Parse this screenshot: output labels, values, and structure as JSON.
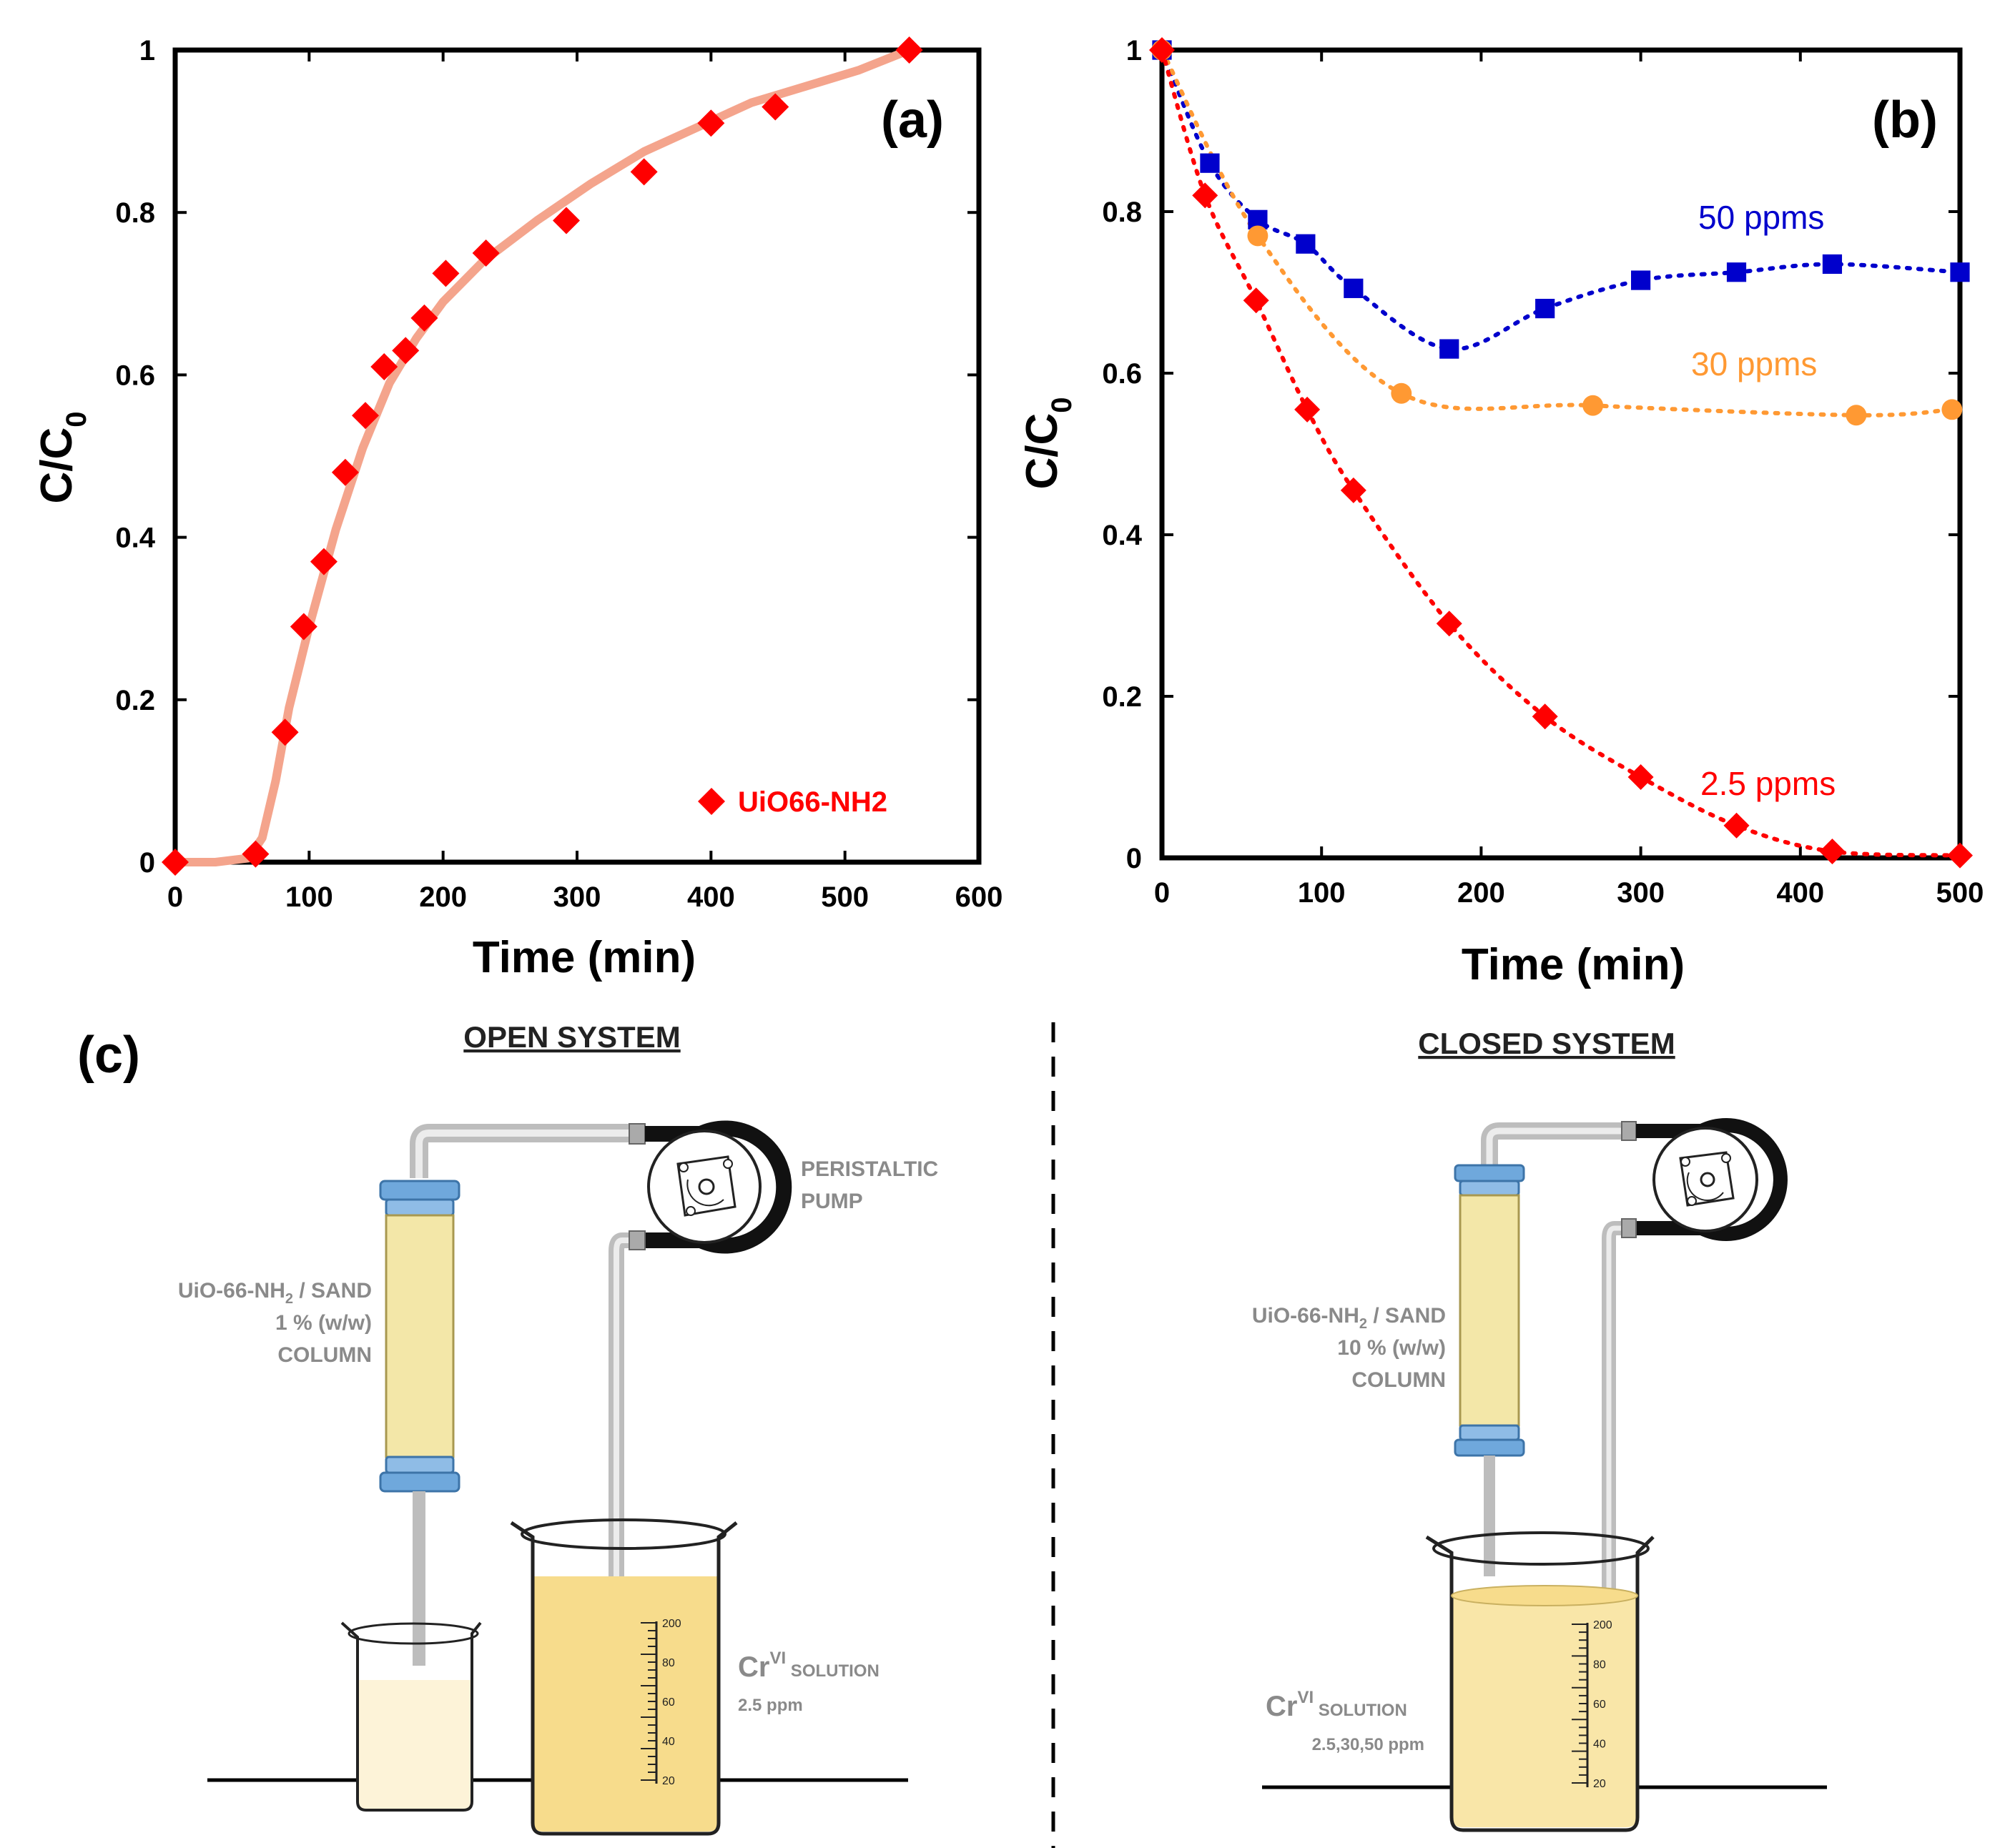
{
  "chart_data": [
    {
      "type": "scatter",
      "panel": "(a)",
      "xlabel": "Time (min)",
      "ylabel_main": "C/C",
      "ylabel_sub": "0",
      "xlim": [
        0,
        600
      ],
      "ylim": [
        0,
        1
      ],
      "xticks": [
        "0",
        "100",
        "200",
        "300",
        "400",
        "500",
        "600"
      ],
      "yticks": [
        "0",
        "0.2",
        "0.4",
        "0.6",
        "0.8",
        "1"
      ],
      "legend": "bottom-right",
      "series": [
        {
          "name": "UiO66-NH2",
          "color": "#ff0000",
          "fit_color": "#f4a48c",
          "marker": "diamond",
          "x": [
            0,
            60,
            82,
            96,
            111,
            127,
            142,
            156,
            172,
            186,
            202,
            232,
            292,
            350,
            400,
            448,
            548
          ],
          "y": [
            0,
            0.01,
            0.16,
            0.29,
            0.37,
            0.48,
            0.55,
            0.61,
            0.63,
            0.67,
            0.725,
            0.75,
            0.79,
            0.85,
            0.91,
            0.93,
            1.0
          ],
          "fit_x": [
            0,
            30,
            55,
            65,
            75,
            85,
            100,
            120,
            140,
            160,
            180,
            200,
            230,
            270,
            310,
            350,
            390,
            430,
            470,
            510,
            548
          ],
          "fit_y": [
            0,
            0,
            0.005,
            0.03,
            0.1,
            0.19,
            0.29,
            0.41,
            0.51,
            0.59,
            0.645,
            0.69,
            0.74,
            0.79,
            0.835,
            0.875,
            0.905,
            0.935,
            0.955,
            0.975,
            1.0
          ]
        }
      ]
    },
    {
      "type": "line",
      "panel": "(b)",
      "xlabel": "Time (min)",
      "ylabel_main": "C/C",
      "ylabel_sub": "0",
      "xlim": [
        0,
        500
      ],
      "ylim": [
        0,
        1
      ],
      "xticks": [
        "0",
        "100",
        "200",
        "300",
        "400",
        "500"
      ],
      "yticks": [
        "0",
        "0.2",
        "0.4",
        "0.6",
        "0.8",
        "1"
      ],
      "series": [
        {
          "name": "50 ppms",
          "color": "#0000cc",
          "marker": "square",
          "x": [
            0,
            30,
            60,
            90,
            120,
            180,
            240,
            300,
            360,
            420,
            500
          ],
          "y": [
            1.0,
            0.86,
            0.79,
            0.76,
            0.705,
            0.63,
            0.68,
            0.715,
            0.725,
            0.735,
            0.725
          ]
        },
        {
          "name": "30 ppms",
          "color": "#ff9933",
          "marker": "circle",
          "x": [
            0,
            60,
            150,
            270,
            435,
            495
          ],
          "y": [
            1.0,
            0.77,
            0.575,
            0.56,
            0.548,
            0.555
          ]
        },
        {
          "name": "2.5 ppms",
          "color": "#ff0000",
          "marker": "diamond",
          "x": [
            0,
            27,
            59,
            91,
            120,
            180,
            240,
            300,
            360,
            420,
            500
          ],
          "y": [
            1.0,
            0.82,
            0.69,
            0.555,
            0.455,
            0.29,
            0.175,
            0.1,
            0.04,
            0.008,
            0.003
          ]
        }
      ]
    }
  ],
  "panel_c": {
    "letter": "(c)",
    "open_title": "OPEN SYSTEM",
    "closed_title": "CLOSED SYSTEM",
    "pump_label_line1": "PERISTALTIC",
    "pump_label_line2": "PUMP",
    "open_column_line1_pre": "UiO-66-NH",
    "open_column_line1_sub": "2",
    "open_column_line1_post": " / SAND",
    "open_column_line2": "1 % (w/w)",
    "open_column_line3": "COLUMN",
    "closed_column_line1_pre": "UiO-66-NH",
    "closed_column_line1_sub": "2",
    "closed_column_line1_post": " / SAND",
    "closed_column_line2": "10 % (w/w)",
    "closed_column_line3": "COLUMN",
    "open_solution_main": "Cr",
    "open_solution_sup": "VI",
    "open_solution_word": " SOLUTION",
    "open_solution_conc": "2.5 ppm",
    "closed_solution_main": "Cr",
    "closed_solution_sup": "VI",
    "closed_solution_word": " SOLUTION",
    "closed_solution_conc": "2.5,30,50 ppm",
    "beaker_scale_labels": [
      "200",
      "80",
      "60",
      "40",
      "20"
    ],
    "colors": {
      "column_cap": "#6fa8dc",
      "column_fill": "#f3e7a8",
      "solution": "#f7dc8c",
      "effluent": "#fdf3d8",
      "tubing": "#111111",
      "pipe": "#cfcfcf"
    }
  }
}
